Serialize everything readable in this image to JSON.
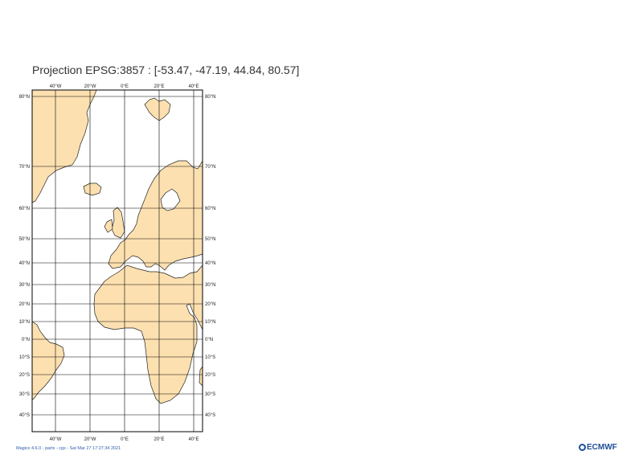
{
  "title": "Projection EPSG:3857 : [-53.47, -47.19, 44.84, 80.57]",
  "colors": {
    "land": "#fde0b0",
    "coast": "#222222",
    "grid": "#000000",
    "footer": "#2f5ea8",
    "logo": "#1f4e99"
  },
  "longitude_labels": [
    "40°W",
    "20°W",
    "0°E",
    "20°E",
    "40°E"
  ],
  "latitude_labels": [
    "80°N",
    "70°N",
    "60°N",
    "50°N",
    "40°N",
    "30°N",
    "20°N",
    "10°N",
    "0°N",
    "10°S",
    "20°S",
    "30°S",
    "40°S"
  ],
  "footer": "Magics 4.6.0 - parts - cgs - Sat Mar 27 17:27:34 2021",
  "logo": "ECMWF"
}
